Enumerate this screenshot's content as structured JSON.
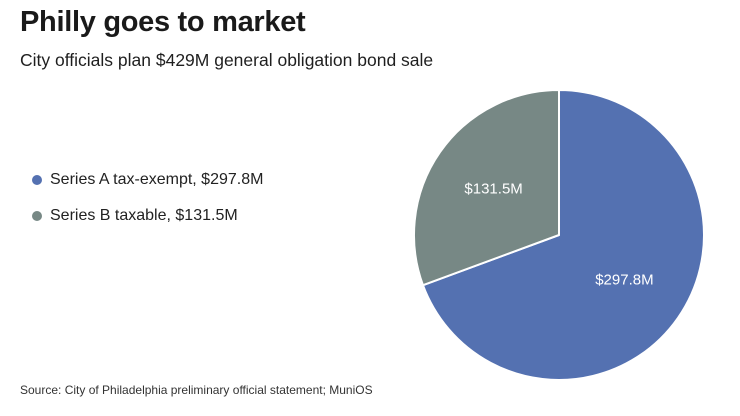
{
  "title": "Philly goes to market",
  "subtitle": "City officials plan $429M general obligation bond sale",
  "source": "Source: City of Philadelphia preliminary official statement; MuniOS",
  "colors": {
    "series_a": "#5471b1",
    "series_b": "#778885"
  },
  "legend": [
    {
      "label": "Series A tax-exempt, $297.8M",
      "color": "#5471b1"
    },
    {
      "label": "Series B taxable, $131.5M",
      "color": "#778885"
    }
  ],
  "chart_data": {
    "type": "pie",
    "categories": [
      "Series A tax-exempt",
      "Series B taxable"
    ],
    "values": [
      297.8,
      131.5
    ],
    "data_labels": [
      "$297.8M",
      "$131.5M"
    ],
    "colors": [
      "#5471b1",
      "#778885"
    ],
    "start": "12 o'clock",
    "direction": "clockwise",
    "legend_position": "left"
  }
}
